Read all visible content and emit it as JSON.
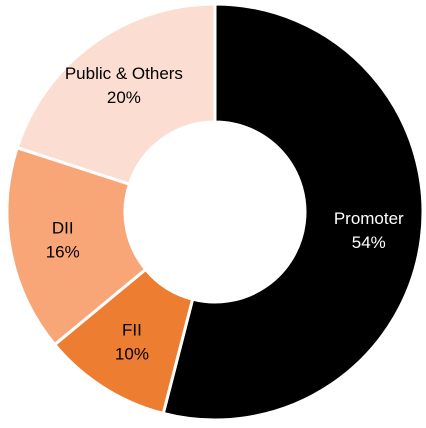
{
  "chart_data": {
    "type": "donut",
    "categories": [
      "Promoter",
      "FII",
      "DII",
      "Public & Others"
    ],
    "values": [
      54,
      10,
      16,
      20
    ],
    "value_labels": [
      "54%",
      "10%",
      "16%",
      "20%"
    ],
    "colors": [
      "#000000",
      "#ED7D31",
      "#F8A677",
      "#FBDDD2"
    ],
    "label_colors": [
      "#ffffff",
      "#000000",
      "#000000",
      "#000000"
    ]
  }
}
